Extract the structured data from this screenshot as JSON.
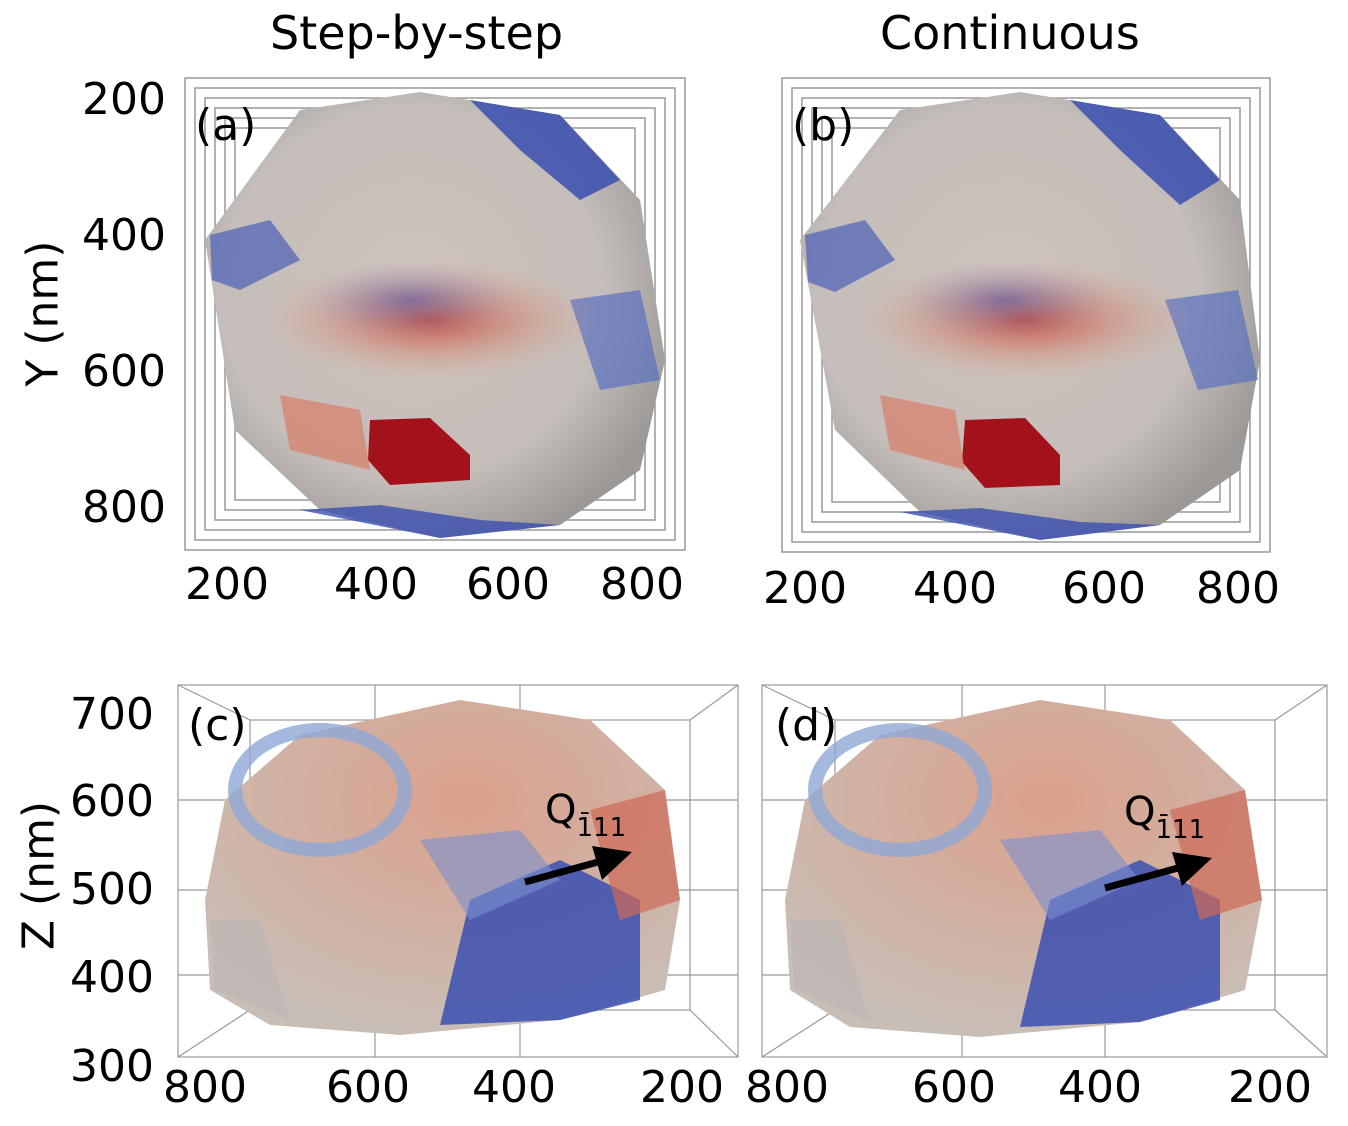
{
  "columns": {
    "left_title": "Step-by-step",
    "right_title": "Continuous"
  },
  "panels": {
    "a": "(a)",
    "b": "(b)",
    "c": "(c)",
    "d": "(d)"
  },
  "axes": {
    "y_title": "Y (nm)",
    "z_title": "Z (nm)",
    "y_ticks": [
      "200",
      "400",
      "600",
      "800"
    ],
    "x_ticks_top": [
      "200",
      "400",
      "600",
      "800"
    ],
    "z_ticks": [
      "700",
      "600",
      "500",
      "400",
      "300"
    ],
    "x_ticks_bottom": [
      "800",
      "600",
      "400",
      "200"
    ]
  },
  "annotation": {
    "q_main": "Q",
    "q_sub": "1̄11"
  },
  "colors": {
    "blue": "#3a4fb0",
    "light_blue": "#8fa7d6",
    "neutral": "#c9c3be",
    "light_red": "#e0a48c",
    "red": "#c43a2a",
    "dark_red": "#a3121a"
  }
}
